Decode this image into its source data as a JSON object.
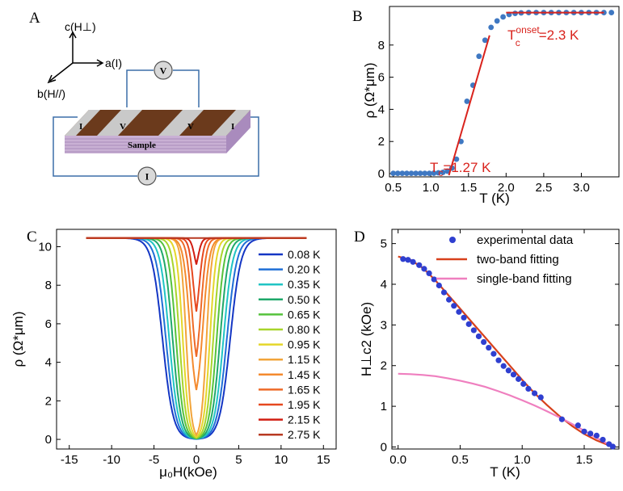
{
  "panels": {
    "A": {
      "letter": "A",
      "axes": {
        "c": "c(H⊥)",
        "a": "a(I)",
        "b": "b(H//)"
      },
      "labels": {
        "I": "I",
        "V": "V",
        "sample": "Sample"
      },
      "colors": {
        "contact": "#c9c9c9",
        "stripe": "#7a4520",
        "slab_top": "#6b3a1c",
        "slab_side": "#b89ac7",
        "wire": "#3c6ea8"
      }
    },
    "B": {
      "letter": "B"
    },
    "C": {
      "letter": "C"
    },
    "D": {
      "letter": "D"
    }
  },
  "chart_data": [
    {
      "type": "scatter",
      "id": "B",
      "xlabel": "T (K)",
      "ylabel": "ρ (Ω*μm)",
      "xlim": [
        0.45,
        3.5
      ],
      "ylim": [
        -0.2,
        10.4
      ],
      "xticks": [
        0.5,
        1.0,
        1.5,
        2.0,
        2.5,
        3.0
      ],
      "xtick_labels": [
        "0.5",
        "1.0",
        "1.5",
        "2.0",
        "2.5",
        "3.0"
      ],
      "yticks": [
        0,
        2,
        4,
        6,
        8
      ],
      "series": [
        {
          "color": "#3f78c2",
          "points": [
            [
              0.5,
              0.02
            ],
            [
              0.56,
              0.02
            ],
            [
              0.62,
              0.02
            ],
            [
              0.68,
              0.02
            ],
            [
              0.74,
              0.02
            ],
            [
              0.8,
              0.02
            ],
            [
              0.86,
              0.02
            ],
            [
              0.92,
              0.02
            ],
            [
              0.98,
              0.02
            ],
            [
              1.04,
              0.03
            ],
            [
              1.1,
              0.05
            ],
            [
              1.16,
              0.08
            ],
            [
              1.22,
              0.15
            ],
            [
              1.28,
              0.35
            ],
            [
              1.34,
              0.9
            ],
            [
              1.4,
              2.0
            ],
            [
              1.48,
              4.5
            ],
            [
              1.56,
              5.5
            ],
            [
              1.64,
              7.3
            ],
            [
              1.72,
              8.3
            ],
            [
              1.8,
              9.1
            ],
            [
              1.88,
              9.5
            ],
            [
              1.96,
              9.75
            ],
            [
              2.04,
              9.9
            ],
            [
              2.12,
              9.97
            ],
            [
              2.2,
              10.0
            ],
            [
              2.3,
              10.02
            ],
            [
              2.4,
              10.02
            ],
            [
              2.5,
              10.02
            ],
            [
              2.6,
              10.02
            ],
            [
              2.7,
              10.02
            ],
            [
              2.8,
              10.02
            ],
            [
              2.9,
              10.02
            ],
            [
              3.0,
              10.02
            ],
            [
              3.1,
              10.02
            ],
            [
              3.2,
              10.02
            ],
            [
              3.3,
              10.02
            ],
            [
              3.4,
              10.02
            ]
          ]
        }
      ],
      "fit_lines": [
        {
          "color": "#d9231d",
          "points": [
            [
              1.24,
              -0.1
            ],
            [
              1.78,
              8.6
            ]
          ]
        },
        {
          "color": "#d9231d",
          "points": [
            [
              2.0,
              10.02
            ],
            [
              3.3,
              10.02
            ]
          ]
        }
      ],
      "annotations": [
        {
          "text_main": "T",
          "text_sup": "onset",
          "text_sub": "c",
          "text_value": "=2.3 K",
          "color": "#d9231d"
        },
        {
          "text_main": "T",
          "text_sub": "c",
          "text_value": "=1.27 K",
          "color": "#d9231d"
        }
      ]
    },
    {
      "type": "line",
      "id": "C",
      "xlabel": "μ₀H(kOe)",
      "ylabel": "ρ (Ω*μm)",
      "xlim": [
        -16.5,
        16.5
      ],
      "ylim": [
        -0.5,
        10.9
      ],
      "xticks": [
        -15,
        -10,
        -5,
        0,
        5,
        10,
        15
      ],
      "yticks": [
        0,
        2,
        4,
        6,
        8,
        10
      ],
      "rho_n": 10.45,
      "legend_position": "right",
      "series": [
        {
          "name": "0.08 K",
          "color": "#1436c4",
          "hc": 4.0,
          "rho_min": 0.0
        },
        {
          "name": "0.20 K",
          "color": "#1f6fd6",
          "hc": 3.6,
          "rho_min": 0.0
        },
        {
          "name": "0.35 K",
          "color": "#20c4c4",
          "hc": 3.2,
          "rho_min": 0.0
        },
        {
          "name": "0.50 K",
          "color": "#1fa86a",
          "hc": 2.8,
          "rho_min": 0.0
        },
        {
          "name": "0.65 K",
          "color": "#55c23c",
          "hc": 2.4,
          "rho_min": 0.0
        },
        {
          "name": "0.80 K",
          "color": "#a8d42c",
          "hc": 2.0,
          "rho_min": 0.0
        },
        {
          "name": "0.95 K",
          "color": "#e4d62a",
          "hc": 1.6,
          "rho_min": 0.0
        },
        {
          "name": "1.15 K",
          "color": "#f2a43a",
          "hc": 1.2,
          "rho_min": 0.0
        },
        {
          "name": "1.45 K",
          "color": "#f48a2e",
          "hc": 0.8,
          "rho_min": 1.6
        },
        {
          "name": "1.65 K",
          "color": "#ee6a28",
          "hc": 0.55,
          "rho_min": 3.2
        },
        {
          "name": "1.95 K",
          "color": "#e6481f",
          "hc": 0.35,
          "rho_min": 5.6
        },
        {
          "name": "2.15 K",
          "color": "#d11d12",
          "hc": 0.2,
          "rho_min": 8.5
        },
        {
          "name": "2.75 K",
          "color": "#b83a22",
          "hc": 0.0,
          "rho_min": 10.45
        }
      ]
    },
    {
      "type": "line",
      "id": "D",
      "xlabel": "T (K)",
      "ylabel": "H⊥c2 (kOe)",
      "xlim": [
        -0.05,
        1.78
      ],
      "ylim": [
        -0.05,
        5.35
      ],
      "xticks": [
        0.0,
        0.5,
        1.0,
        1.5
      ],
      "xtick_labels": [
        "0.0",
        "0.5",
        "1.0",
        "1.5"
      ],
      "yticks": [
        0,
        1,
        2,
        3,
        4,
        5
      ],
      "legend_position": "top-right",
      "series": [
        {
          "name": "experimental data",
          "color": "#2f3fd0",
          "kind": "points",
          "points": [
            [
              0.04,
              4.62
            ],
            [
              0.08,
              4.6
            ],
            [
              0.12,
              4.55
            ],
            [
              0.17,
              4.47
            ],
            [
              0.21,
              4.38
            ],
            [
              0.25,
              4.27
            ],
            [
              0.29,
              4.12
            ],
            [
              0.33,
              3.97
            ],
            [
              0.37,
              3.8
            ],
            [
              0.41,
              3.62
            ],
            [
              0.45,
              3.47
            ],
            [
              0.49,
              3.32
            ],
            [
              0.53,
              3.18
            ],
            [
              0.57,
              3.02
            ],
            [
              0.61,
              2.87
            ],
            [
              0.65,
              2.72
            ],
            [
              0.69,
              2.58
            ],
            [
              0.73,
              2.44
            ],
            [
              0.77,
              2.29
            ],
            [
              0.81,
              2.13
            ],
            [
              0.85,
              1.99
            ],
            [
              0.89,
              1.88
            ],
            [
              0.93,
              1.78
            ],
            [
              0.97,
              1.67
            ],
            [
              1.01,
              1.55
            ],
            [
              1.05,
              1.43
            ],
            [
              1.1,
              1.32
            ],
            [
              1.15,
              1.22
            ],
            [
              1.32,
              0.68
            ],
            [
              1.45,
              0.53
            ],
            [
              1.5,
              0.38
            ],
            [
              1.55,
              0.33
            ],
            [
              1.6,
              0.28
            ],
            [
              1.65,
              0.18
            ],
            [
              1.7,
              0.07
            ],
            [
              1.73,
              0.01
            ]
          ]
        },
        {
          "name": "two-band fitting",
          "color": "#d7411c",
          "kind": "line",
          "points": [
            [
              0.0,
              4.68
            ],
            [
              0.1,
              4.6
            ],
            [
              0.2,
              4.4
            ],
            [
              0.3,
              4.1
            ],
            [
              0.4,
              3.75
            ],
            [
              0.5,
              3.4
            ],
            [
              0.6,
              3.05
            ],
            [
              0.7,
              2.7
            ],
            [
              0.8,
              2.35
            ],
            [
              0.9,
              2.0
            ],
            [
              1.0,
              1.65
            ],
            [
              1.1,
              1.32
            ],
            [
              1.2,
              1.03
            ],
            [
              1.3,
              0.76
            ],
            [
              1.4,
              0.52
            ],
            [
              1.5,
              0.32
            ],
            [
              1.6,
              0.16
            ],
            [
              1.7,
              0.04
            ],
            [
              1.75,
              0.0
            ]
          ]
        },
        {
          "name": "single-band fitting",
          "color": "#ef7fbf",
          "kind": "line",
          "points": [
            [
              0.0,
              1.8
            ],
            [
              0.1,
              1.79
            ],
            [
              0.2,
              1.77
            ],
            [
              0.3,
              1.74
            ],
            [
              0.4,
              1.69
            ],
            [
              0.5,
              1.63
            ],
            [
              0.6,
              1.56
            ],
            [
              0.7,
              1.48
            ],
            [
              0.8,
              1.38
            ],
            [
              0.9,
              1.27
            ],
            [
              1.0,
              1.15
            ],
            [
              1.1,
              1.02
            ],
            [
              1.2,
              0.88
            ],
            [
              1.3,
              0.73
            ],
            [
              1.4,
              0.57
            ],
            [
              1.5,
              0.4
            ],
            [
              1.6,
              0.22
            ],
            [
              1.7,
              0.06
            ],
            [
              1.75,
              0.0
            ]
          ]
        }
      ]
    }
  ]
}
